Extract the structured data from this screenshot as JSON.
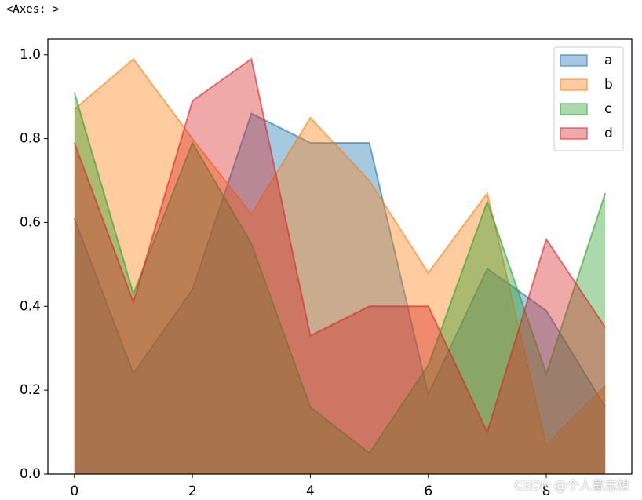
{
  "header": "<Axes: >",
  "watermark": "CSDN @个人意志想",
  "chart_data": {
    "type": "area",
    "stacked": false,
    "alpha": 0.4,
    "x": [
      0,
      1,
      2,
      3,
      4,
      5,
      6,
      7,
      8,
      9
    ],
    "series": [
      {
        "name": "a",
        "color": "#1f77b4",
        "values": [
          0.61,
          0.24,
          0.44,
          0.86,
          0.79,
          0.79,
          0.19,
          0.49,
          0.39,
          0.16
        ]
      },
      {
        "name": "b",
        "color": "#ff7f0e",
        "values": [
          0.87,
          0.99,
          0.8,
          0.62,
          0.85,
          0.7,
          0.48,
          0.67,
          0.07,
          0.21
        ]
      },
      {
        "name": "c",
        "color": "#2ca02c",
        "values": [
          0.91,
          0.43,
          0.79,
          0.55,
          0.16,
          0.05,
          0.26,
          0.65,
          0.24,
          0.67
        ]
      },
      {
        "name": "d",
        "color": "#d62728",
        "values": [
          0.79,
          0.41,
          0.89,
          0.99,
          0.33,
          0.4,
          0.4,
          0.1,
          0.56,
          0.35
        ]
      }
    ],
    "xlim": [
      -0.45,
      9.45
    ],
    "xticks": [
      0,
      2,
      4,
      6,
      8
    ],
    "ylim": [
      0,
      1.037
    ],
    "yticks": [
      {
        "value": 0,
        "label": "0.0"
      },
      0.2,
      0.4,
      0.6,
      0.8,
      {
        "value": 1,
        "label": "1.0"
      }
    ],
    "legend": "upper right"
  }
}
